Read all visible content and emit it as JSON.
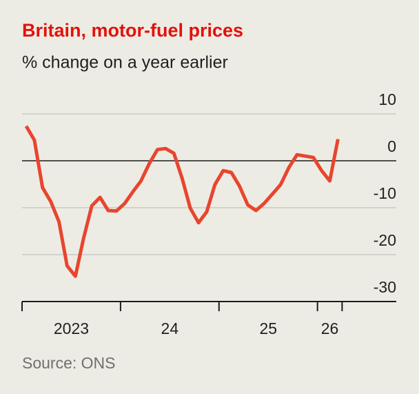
{
  "chart_data": {
    "type": "line",
    "title": "Britain, motor-fuel prices",
    "subtitle": "% change on a year earlier",
    "source": "Source: ONS",
    "x": [
      2023.042,
      2023.125,
      2023.208,
      2023.292,
      2023.375,
      2023.458,
      2023.542,
      2023.625,
      2023.708,
      2023.792,
      2023.875,
      2023.958,
      2024.042,
      2024.125,
      2024.208,
      2024.292,
      2024.375,
      2024.458,
      2024.542,
      2024.625,
      2024.708,
      2024.792,
      2024.875,
      2024.958,
      2025.042,
      2025.125,
      2025.208,
      2025.292,
      2025.375,
      2025.458,
      2025.542,
      2025.625,
      2025.708,
      2025.792,
      2025.875,
      2025.958,
      2026.042,
      2026.125,
      2026.208
    ],
    "series": [
      {
        "color": "#e8452f",
        "values": [
          7.4,
          4.4,
          -5.7,
          -8.7,
          -13,
          -22.4,
          -24.6,
          -16.5,
          -9.6,
          -7.8,
          -10.6,
          -10.7,
          -9.1,
          -6.6,
          -4.3,
          -0.6,
          2.4,
          2.6,
          1.6,
          -3.7,
          -10.1,
          -13.2,
          -10.9,
          -5.1,
          -2.1,
          -2.5,
          -5.4,
          -9.4,
          -10.6,
          -9.1,
          -7.1,
          -5.1,
          -1.5,
          1.3,
          1.0,
          0.7,
          -2.1,
          -4.3,
          4.6
        ]
      }
    ],
    "xlim": [
      2023,
      2026.8
    ],
    "xticks": [
      {
        "value": 2023,
        "label": "2023"
      },
      {
        "value": 2024,
        "label": "24"
      },
      {
        "value": 2025,
        "label": "25"
      },
      {
        "value": 2026,
        "label": "26"
      }
    ],
    "x_end_tick": 2026.25,
    "ylim": [
      -30,
      10
    ],
    "yticks": [
      10,
      0,
      -10,
      -20,
      -30
    ],
    "grid": true
  }
}
